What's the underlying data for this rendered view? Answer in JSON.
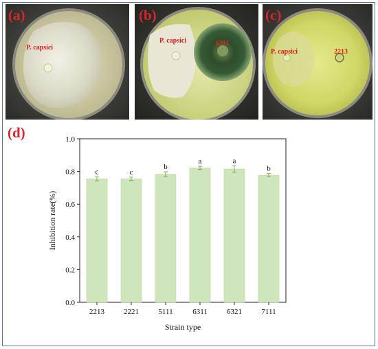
{
  "panels": {
    "a": {
      "label": "(a)",
      "dish_labels": [
        "P. capsici"
      ]
    },
    "b": {
      "label": "(b)",
      "dish_labels": [
        "P. capsici",
        "6311"
      ]
    },
    "c": {
      "label": "(c)",
      "dish_labels": [
        "P. capsici",
        "2213"
      ]
    },
    "d": {
      "label": "(d)"
    }
  },
  "colors": {
    "bar": "#cfe6bd",
    "bar_stroke": "#b9d8a2",
    "panel_label": "#d8262a",
    "frame": "#4a6fb5"
  },
  "chart_data": {
    "type": "bar",
    "categories": [
      "2213",
      "2221",
      "5111",
      "6311",
      "6321",
      "7111"
    ],
    "values": [
      0.755,
      0.755,
      0.783,
      0.822,
      0.815,
      0.777
    ],
    "errors": [
      0.012,
      0.01,
      0.015,
      0.01,
      0.02,
      0.01
    ],
    "significance": [
      "c",
      "c",
      "b",
      "a",
      "a",
      "b"
    ],
    "xlabel": "Strain type",
    "ylabel": "Inhibition rate(%)",
    "ylim": [
      0,
      1.0
    ],
    "yticks": [
      "0.0",
      "0.2",
      "0.4",
      "0.6",
      "0.8",
      "1.0"
    ],
    "ytick_values": [
      0,
      0.2,
      0.4,
      0.6,
      0.8,
      1.0
    ]
  }
}
